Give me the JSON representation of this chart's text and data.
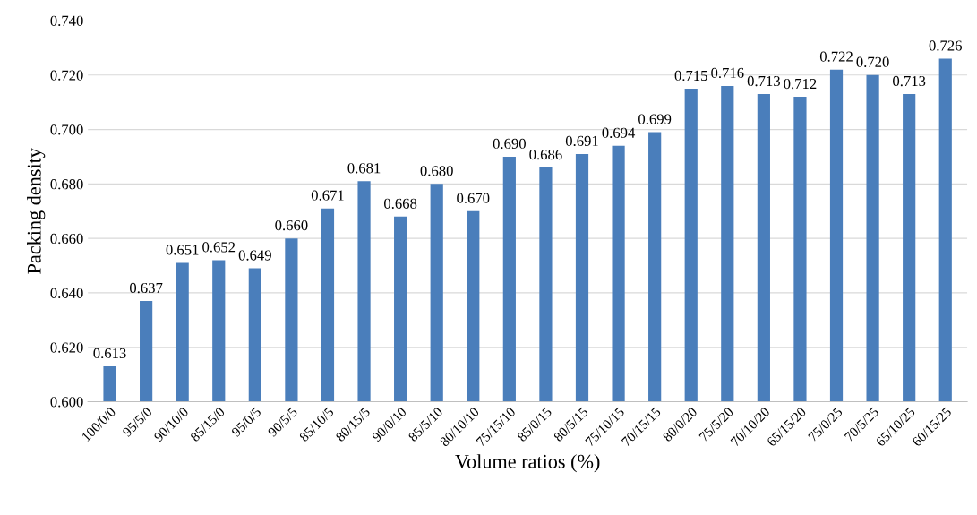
{
  "chart_data": {
    "type": "bar",
    "xlabel": "Volume ratios (%)",
    "ylabel": "Packing density",
    "categories": [
      "100/0/0",
      "95/5/0",
      "90/10/0",
      "85/15/0",
      "95/0/5",
      "90/5/5",
      "85/10/5",
      "80/15/5",
      "90/0/10",
      "85/5/10",
      "80/10/10",
      "75/15/10",
      "85/0/15",
      "80/5/15",
      "75/10/15",
      "70/15/15",
      "80/0/20",
      "75/5/20",
      "70/10/20",
      "65/15/20",
      "75/0/25",
      "70/5/25",
      "65/10/25",
      "60/15/25"
    ],
    "values": [
      0.613,
      0.637,
      0.651,
      0.652,
      0.649,
      0.66,
      0.671,
      0.681,
      0.668,
      0.68,
      0.67,
      0.69,
      0.686,
      0.691,
      0.694,
      0.699,
      0.715,
      0.716,
      0.713,
      0.712,
      0.722,
      0.72,
      0.713,
      0.726
    ],
    "value_labels": [
      "0.613",
      "0.637",
      "0.651",
      "0.652",
      "0.649",
      "0.660",
      "0.671",
      "0.681",
      "0.668",
      "0.680",
      "0.670",
      "0.690",
      "0.686",
      "0.691",
      "0.694",
      "0.699",
      "0.715",
      "0.716",
      "0.713",
      "0.712",
      "0.722",
      "0.720",
      "0.713",
      "0.726"
    ],
    "color": "#4a7ebb",
    "grid": "y",
    "ylim": [
      0.6,
      0.74
    ],
    "yticks": [
      {
        "value": 0.6,
        "label": "0.600"
      },
      {
        "value": 0.62,
        "label": "0.620"
      },
      {
        "value": 0.64,
        "label": "0.640"
      },
      {
        "value": 0.66,
        "label": "0.660"
      },
      {
        "value": 0.68,
        "label": "0.680"
      },
      {
        "value": 0.7,
        "label": "0.700"
      },
      {
        "value": 0.72,
        "label": "0.720"
      },
      {
        "value": 0.74,
        "label": "0.740"
      }
    ]
  }
}
